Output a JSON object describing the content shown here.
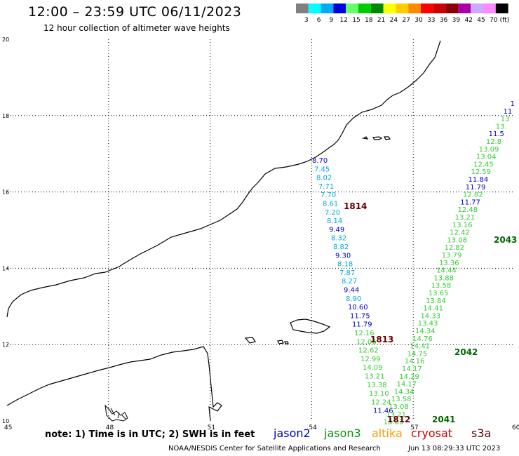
{
  "header": {
    "title": "12:00 – 23:59 UTC 06/11/2023",
    "subtitle": "12 hour collection of altimeter wave heights"
  },
  "legend": {
    "unit": "(ft)",
    "bins": [
      {
        "label": "3",
        "color": "#808080"
      },
      {
        "label": "6",
        "color": "#00ffff"
      },
      {
        "label": "9",
        "color": "#00aaff"
      },
      {
        "label": "12",
        "color": "#0000dd"
      },
      {
        "label": "15",
        "color": "#66ff66"
      },
      {
        "label": "18",
        "color": "#00cc00"
      },
      {
        "label": "21",
        "color": "#008800"
      },
      {
        "label": "24",
        "color": "#ffff00"
      },
      {
        "label": "27",
        "color": "#ffcc00"
      },
      {
        "label": "30",
        "color": "#ff8800"
      },
      {
        "label": "33",
        "color": "#ff0000"
      },
      {
        "label": "36",
        "color": "#cc0000"
      },
      {
        "label": "39",
        "color": "#880000"
      },
      {
        "label": "42",
        "color": "#aa00aa"
      },
      {
        "label": "45",
        "color": "#ccaaff"
      },
      {
        "label": "70",
        "color": "#ff88ff"
      },
      {
        "label": "",
        "color": "#000000"
      }
    ]
  },
  "axes": {
    "lon_ticks": [
      "45",
      "48",
      "51",
      "54",
      "57",
      "60"
    ],
    "lat_ticks": [
      "10",
      "12",
      "14",
      "16",
      "18",
      "20"
    ],
    "lon_range": [
      45,
      60
    ],
    "lat_range": [
      10,
      20
    ]
  },
  "colors": {
    "jason2": "#0000cc",
    "jason3": "#33cc33",
    "jason3_light": "#66cc44",
    "altika": "#ff9900",
    "cryosat": "#cc0000",
    "s3a": "#660000",
    "time_green": "#006600",
    "light_blue": "#00aadd"
  },
  "tracks": [
    {
      "name": "track-left",
      "values": [
        {
          "v": "8.70",
          "c": "jason2"
        },
        {
          "v": "7.45",
          "c": "light_blue"
        },
        {
          "v": "8.02",
          "c": "light_blue"
        },
        {
          "v": "7.71",
          "c": "light_blue"
        },
        {
          "v": "7.70",
          "c": "light_blue"
        },
        {
          "v": "8.61",
          "c": "light_blue"
        },
        {
          "v": "7.20",
          "c": "light_blue"
        },
        {
          "v": "8.14",
          "c": "light_blue"
        },
        {
          "v": "9.49",
          "c": "jason2"
        },
        {
          "v": "8.32",
          "c": "light_blue"
        },
        {
          "v": "8.82",
          "c": "light_blue"
        },
        {
          "v": "9.30",
          "c": "jason2"
        },
        {
          "v": "8.18",
          "c": "light_blue"
        },
        {
          "v": "7.87",
          "c": "light_blue"
        },
        {
          "v": "8.27",
          "c": "light_blue"
        },
        {
          "v": "9.44",
          "c": "jason2"
        },
        {
          "v": "8.90",
          "c": "light_blue"
        },
        {
          "v": "10.60",
          "c": "jason2"
        },
        {
          "v": "11.75",
          "c": "jason2"
        },
        {
          "v": "11.79",
          "c": "jason2"
        },
        {
          "v": "12.16",
          "c": "jason3"
        },
        {
          "v": "12.06",
          "c": "jason3"
        },
        {
          "v": "12.62",
          "c": "jason3"
        },
        {
          "v": "12.99",
          "c": "jason3"
        },
        {
          "v": "14.09",
          "c": "jason3"
        },
        {
          "v": "13.21",
          "c": "jason3"
        },
        {
          "v": "13.38",
          "c": "jason3"
        },
        {
          "v": "13.10",
          "c": "jason3"
        },
        {
          "v": "12.24",
          "c": "jason3"
        },
        {
          "v": "11.46",
          "c": "jason2"
        }
      ]
    },
    {
      "name": "track-right",
      "values": [
        {
          "v": "1",
          "c": "jason2"
        },
        {
          "v": "11",
          "c": "jason2"
        },
        {
          "v": "13",
          "c": "jason3"
        },
        {
          "v": "13.",
          "c": "jason3"
        },
        {
          "v": "11.5",
          "c": "jason2"
        },
        {
          "v": "12.8",
          "c": "jason3"
        },
        {
          "v": "13.09",
          "c": "jason3"
        },
        {
          "v": "13.04",
          "c": "jason3"
        },
        {
          "v": "12.45",
          "c": "jason3"
        },
        {
          "v": "12.59",
          "c": "jason3"
        },
        {
          "v": "11.84",
          "c": "jason2"
        },
        {
          "v": "11.79",
          "c": "jason2"
        },
        {
          "v": "12.82",
          "c": "jason3"
        },
        {
          "v": "11.77",
          "c": "jason2"
        },
        {
          "v": "12.48",
          "c": "jason3"
        },
        {
          "v": "13.21",
          "c": "jason3"
        },
        {
          "v": "13.16",
          "c": "jason3"
        },
        {
          "v": "12.42",
          "c": "jason3"
        },
        {
          "v": "13.08",
          "c": "jason3"
        },
        {
          "v": "12.82",
          "c": "jason3"
        },
        {
          "v": "13.79",
          "c": "jason3"
        },
        {
          "v": "13.36",
          "c": "jason3"
        },
        {
          "v": "14.44",
          "c": "jason3"
        },
        {
          "v": "13.88",
          "c": "jason3"
        },
        {
          "v": "13.58",
          "c": "jason3"
        },
        {
          "v": "13.65",
          "c": "jason3"
        },
        {
          "v": "13.84",
          "c": "jason3"
        },
        {
          "v": "14.41",
          "c": "jason3"
        },
        {
          "v": "14.33",
          "c": "jason3"
        },
        {
          "v": "13.43",
          "c": "jason3"
        },
        {
          "v": "14.34",
          "c": "jason3"
        },
        {
          "v": "14.76",
          "c": "jason3"
        },
        {
          "v": "14.41",
          "c": "jason3"
        },
        {
          "v": "14.75",
          "c": "jason3"
        },
        {
          "v": "14.16",
          "c": "jason3"
        },
        {
          "v": "14.17",
          "c": "jason3"
        },
        {
          "v": "14.29",
          "c": "jason3"
        },
        {
          "v": "14.17",
          "c": "jason3"
        },
        {
          "v": "14.34",
          "c": "jason3"
        },
        {
          "v": "13.58",
          "c": "jason3"
        },
        {
          "v": "13.08",
          "c": "jason3"
        },
        {
          "v": "13.21",
          "c": "jason3"
        },
        {
          "v": "13.03",
          "c": "jason3"
        }
      ]
    }
  ],
  "time_labels": [
    {
      "text": "1814",
      "color": "s3a"
    },
    {
      "text": "1813",
      "color": "s3a"
    },
    {
      "text": "1812",
      "color": "s3a"
    },
    {
      "text": "2043",
      "color": "time_green"
    },
    {
      "text": "2042",
      "color": "time_green"
    },
    {
      "text": "2041",
      "color": "time_green"
    }
  ],
  "footer": {
    "note": "note: 1) Time is in UTC; 2) SWH is in feet",
    "satellites": [
      {
        "label": "jason2",
        "color": "#0000cc"
      },
      {
        "label": "jason3",
        "color": "#009900"
      },
      {
        "label": "altika",
        "color": "#ff9900"
      },
      {
        "label": "cryosat",
        "color": "#cc0000"
      },
      {
        "label": "s3a",
        "color": "#660000"
      }
    ],
    "credit": "NOAA/NESDIS Center for Satellite Applications and Research",
    "stamp": "Jun 13 08:29:33 UTC 2023"
  }
}
